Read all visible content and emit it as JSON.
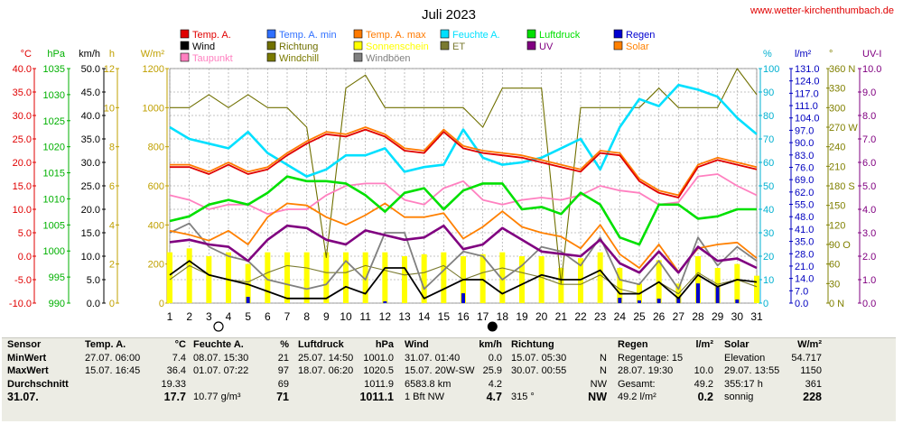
{
  "title": "Juli 2023",
  "site_url": "www.wetter-kirchenthumbach.de",
  "colors": {
    "temp": "#e00000",
    "temp_min": "#3070ff",
    "temp_max": "#ff7a00",
    "feuchte": "#00e0ff",
    "luftdruck": "#00e000",
    "regen": "#0000d0",
    "wind": "#000000",
    "richtung": "#707000",
    "sonnenschein": "#ffff00",
    "et": "#7a7a30",
    "uv": "#800080",
    "solar": "#ff8000",
    "taupunkt": "#ff80c0",
    "windchill": "#7a7a00",
    "windboeen": "#808080",
    "grid": "#b0b0b0"
  },
  "legend": [
    {
      "label": "Temp. A.",
      "color": "#e00000"
    },
    {
      "label": "Temp. A. min",
      "color": "#3070ff"
    },
    {
      "label": "Temp. A. max",
      "color": "#ff7a00"
    },
    {
      "label": "Feuchte A.",
      "color": "#00e0ff"
    },
    {
      "label": "Luftdruck",
      "color": "#00e000"
    },
    {
      "label": "Regen",
      "color": "#0000d0"
    },
    {
      "label": "Wind",
      "color": "#000000"
    },
    {
      "label": "Richtung",
      "color": "#707000"
    },
    {
      "label": "Sonnenschein",
      "color": "#ffff00"
    },
    {
      "label": "ET",
      "color": "#7a7a30"
    },
    {
      "label": "UV",
      "color": "#800080"
    },
    {
      "label": "Solar",
      "color": "#ff8000"
    },
    {
      "label": "Taupunkt",
      "color": "#ff80c0"
    },
    {
      "label": "Windchill",
      "color": "#7a7a00"
    },
    {
      "label": "Windböen",
      "color": "#808080"
    }
  ],
  "axes": {
    "temp": {
      "unit": "°C",
      "color": "#e00000",
      "ticks": [
        "40.0",
        "35.0",
        "30.0",
        "25.0",
        "20.0",
        "15.0",
        "10.0",
        "5.0",
        "0.0",
        "-5.0",
        "-10.0"
      ]
    },
    "pressure": {
      "unit": "hPa",
      "color": "#00b000",
      "ticks": [
        "1035",
        "1030",
        "1025",
        "1020",
        "1015",
        "1010",
        "1005",
        "1000",
        "995",
        "990"
      ]
    },
    "wind": {
      "unit": "km/h",
      "color": "#000000",
      "ticks": [
        "50.0",
        "45.0",
        "40.0",
        "35.0",
        "30.0",
        "25.0",
        "20.0",
        "15.0",
        "10.0",
        "5.0",
        "0.0"
      ]
    },
    "sun": {
      "unit": "h",
      "color": "#c0a000",
      "ticks": [
        "12",
        "10",
        "8",
        "6",
        "4",
        "2",
        "0"
      ]
    },
    "solar": {
      "unit": "W/m²",
      "color": "#c0a000",
      "ticks": [
        "1200",
        "1000",
        "800",
        "600",
        "400",
        "200",
        "0"
      ]
    },
    "humidity": {
      "unit": "%",
      "color": "#00b0d0",
      "ticks": [
        "100",
        "90",
        "80",
        "70",
        "60",
        "50",
        "40",
        "30",
        "20",
        "10",
        "0"
      ]
    },
    "rain": {
      "unit": "l/m²",
      "color": "#0000c0",
      "ticks": [
        "131.0",
        "124.0",
        "117.0",
        "111.0",
        "104.0",
        "97.0",
        "90.0",
        "83.0",
        "76.0",
        "69.0",
        "62.0",
        "55.0",
        "48.0",
        "41.0",
        "35.0",
        "28.0",
        "21.0",
        "14.0",
        "7.0",
        "0.0"
      ]
    },
    "direction": {
      "unit": "°",
      "color": "#808000",
      "ticks": [
        "360 N",
        "330",
        "300",
        "270 W",
        "240",
        "210",
        "180 S",
        "150",
        "120",
        "90 O",
        "60",
        "30",
        "0 N"
      ]
    },
    "uv": {
      "unit": "UV-I",
      "color": "#800080",
      "ticks": [
        "10.0",
        "9.0",
        "8.0",
        "7.0",
        "6.0",
        "5.0",
        "4.0",
        "3.0",
        "2.0",
        "1.0",
        "0.0"
      ]
    }
  },
  "moon_phases": [
    {
      "day": 4,
      "symbol": "○"
    },
    {
      "day": 18,
      "symbol": "●"
    }
  ],
  "chart_data": {
    "type": "line",
    "title": "Juli 2023",
    "x": [
      1,
      2,
      3,
      4,
      5,
      6,
      7,
      8,
      9,
      10,
      11,
      12,
      13,
      14,
      15,
      16,
      17,
      18,
      19,
      20,
      21,
      22,
      23,
      24,
      25,
      26,
      27,
      28,
      29,
      30,
      31
    ],
    "series": [
      {
        "name": "Temp. A.",
        "axis": "temp",
        "values": [
          19.0,
          19.0,
          17.5,
          19.5,
          17.5,
          18.5,
          21.5,
          24.0,
          26.0,
          25.5,
          27.0,
          25.5,
          22.5,
          22.0,
          26.5,
          23.0,
          22.0,
          21.5,
          21.0,
          20.0,
          19.0,
          18.0,
          22.0,
          21.5,
          16.0,
          13.5,
          12.5,
          19.0,
          20.5,
          19.5,
          18.5
        ]
      },
      {
        "name": "Temp. A. max",
        "axis": "temp",
        "values": [
          19.5,
          19.5,
          18.0,
          20.0,
          18.0,
          19.0,
          22.0,
          24.5,
          26.5,
          26.0,
          27.5,
          26.0,
          23.0,
          22.5,
          27.0,
          23.5,
          22.5,
          22.0,
          21.5,
          20.5,
          19.5,
          18.5,
          22.5,
          22.0,
          16.5,
          14.0,
          13.0,
          19.5,
          21.0,
          20.0,
          19.0
        ]
      },
      {
        "name": "Feuchte A.",
        "axis": "humidity",
        "values": [
          75,
          70,
          68,
          66,
          73,
          64,
          59,
          54,
          57,
          63,
          63,
          66,
          56,
          58,
          59,
          74,
          62,
          59,
          60,
          62,
          66,
          70,
          57,
          75,
          87,
          84,
          93,
          91,
          88,
          79,
          72
        ]
      },
      {
        "name": "Luftdruck",
        "axis": "pressure",
        "values": [
          1007.5,
          1008.5,
          1011.0,
          1012.0,
          1011.0,
          1013.5,
          1017.0,
          1016.0,
          1016.0,
          1015.5,
          1013.0,
          1009.5,
          1013.5,
          1014.5,
          1010.0,
          1014.0,
          1015.5,
          1015.5,
          1010.0,
          1010.5,
          1009.0,
          1013.5,
          1011.0,
          1004.0,
          1002.5,
          1011.0,
          1011.0,
          1008.0,
          1008.5,
          1010.0,
          1010.0
        ]
      },
      {
        "name": "Wind",
        "axis": "wind",
        "values": [
          6.0,
          9.0,
          6.0,
          5.0,
          4.0,
          2.5,
          1.0,
          1.0,
          1.0,
          3.5,
          2.0,
          7.5,
          7.5,
          1.0,
          3.0,
          5.0,
          5.0,
          2.0,
          4.0,
          6.0,
          5.0,
          5.0,
          7.0,
          2.0,
          2.0,
          4.5,
          1.0,
          6.0,
          3.5,
          5.0,
          4.5
        ]
      },
      {
        "name": "Windböen",
        "axis": "wind",
        "values": [
          15.0,
          17.0,
          12.0,
          10.0,
          9.0,
          5.0,
          4.0,
          3.0,
          4.0,
          9.0,
          5.0,
          15.0,
          15.0,
          3.0,
          7.0,
          11.0,
          10.0,
          5.0,
          8.0,
          12.0,
          11.0,
          8.0,
          14.0,
          5.0,
          4.0,
          9.0,
          3.0,
          14.0,
          8.0,
          12.0,
          9.0
        ]
      },
      {
        "name": "Richtung",
        "axis": "direction",
        "values": [
          300,
          300,
          320,
          300,
          320,
          300,
          300,
          270,
          70,
          330,
          350,
          300,
          300,
          300,
          300,
          300,
          270,
          330,
          330,
          330,
          30,
          300,
          300,
          300,
          300,
          330,
          300,
          300,
          300,
          360,
          320
        ]
      },
      {
        "name": "Solar",
        "axis": "solar",
        "values": [
          370,
          350,
          320,
          370,
          300,
          440,
          510,
          500,
          440,
          400,
          450,
          510,
          440,
          440,
          460,
          330,
          390,
          470,
          390,
          360,
          340,
          280,
          400,
          250,
          180,
          300,
          160,
          280,
          300,
          310,
          230
        ]
      },
      {
        "name": "UV",
        "axis": "uv",
        "values": [
          2.6,
          2.7,
          2.5,
          2.4,
          1.8,
          2.7,
          3.3,
          3.2,
          2.7,
          2.5,
          3.1,
          2.9,
          2.7,
          2.8,
          3.3,
          2.3,
          2.5,
          3.2,
          2.7,
          2.2,
          2.1,
          2.0,
          2.7,
          1.7,
          1.3,
          2.2,
          1.3,
          2.4,
          1.8,
          1.9,
          1.5
        ]
      },
      {
        "name": "Taupunkt",
        "axis": "temp",
        "values": [
          13.0,
          12.0,
          10.0,
          11.0,
          11.0,
          9.0,
          10.0,
          10.0,
          13.0,
          15.0,
          15.5,
          15.5,
          12.0,
          11.0,
          14.5,
          16.0,
          12.0,
          11.0,
          12.0,
          12.5,
          12.0,
          13.0,
          15.0,
          14.0,
          13.5,
          11.0,
          11.5,
          17.0,
          17.5,
          15.0,
          13.0
        ]
      },
      {
        "name": "ET",
        "axis": "uv",
        "values": [
          1.0,
          1.6,
          1.2,
          1.0,
          0.9,
          1.3,
          1.6,
          1.5,
          1.3,
          1.3,
          1.6,
          1.4,
          1.2,
          1.3,
          1.6,
          1.0,
          1.3,
          1.5,
          1.3,
          1.1,
          0.8,
          0.8,
          1.2,
          0.6,
          0.4,
          0.9,
          0.4,
          1.3,
          0.8,
          1.0,
          0.7
        ]
      },
      {
        "name": "Windchill",
        "axis": "temp",
        "values": [
          19.0,
          19.0,
          17.5,
          19.5,
          17.5,
          18.5,
          21.5,
          24.0,
          26.0,
          25.5,
          27.0,
          25.5,
          22.5,
          22.0,
          26.5,
          23.0,
          22.0,
          21.5,
          21.0,
          20.0,
          19.0,
          18.0,
          22.0,
          21.5,
          16.0,
          13.5,
          12.5,
          19.0,
          20.5,
          19.5,
          18.5
        ]
      },
      {
        "name": "Sonnenschein",
        "axis": "sun",
        "type": "bar",
        "values": [
          2.6,
          2.8,
          2.4,
          2.6,
          2.0,
          2.6,
          2.6,
          2.6,
          2.6,
          2.6,
          2.6,
          2.6,
          2.4,
          2.5,
          2.6,
          2.4,
          2.5,
          2.6,
          2.4,
          2.4,
          1.8,
          2.3,
          2.6,
          1.8,
          1.0,
          2.2,
          1.0,
          2.4,
          1.8,
          2.0,
          1.4
        ]
      },
      {
        "name": "Regen",
        "axis": "rain",
        "type": "bar",
        "values": [
          0,
          0,
          0,
          0,
          3.5,
          0,
          0,
          0,
          0,
          0,
          0,
          1.0,
          0,
          0,
          0,
          5.5,
          0,
          0,
          0,
          0,
          0,
          0,
          0,
          3.0,
          1.5,
          2.5,
          3.5,
          11.0,
          9.0,
          2.0,
          0
        ]
      }
    ],
    "xlabel": "",
    "ylabel": "°C",
    "ylim": [
      -10,
      40
    ]
  },
  "stats": {
    "sensor": {
      "header": "Sensor",
      "rows": [
        "MinWert",
        "MaxWert",
        "Durchschnitt"
      ],
      "total": "31.07."
    },
    "temp": {
      "h1": "Temp. A.",
      "h2": "°C",
      "r1": {
        "date": "27.07.",
        "time": "06:00",
        "val": "7.4"
      },
      "r2": {
        "date": "15.07.",
        "time": "16:45",
        "val": "36.4"
      },
      "r3": {
        "val": "19.33"
      },
      "total": "17.7"
    },
    "feuchte": {
      "h1": "Feuchte A.",
      "h2": "%",
      "r1": {
        "date": "08.07.",
        "time": "15:30",
        "val": "21"
      },
      "r2": {
        "date": "01.07.",
        "time": "07:22",
        "val": "97"
      },
      "r3": {
        "val": "69"
      },
      "total_note": "10.77 g/m³",
      "total": "71"
    },
    "luftdruck": {
      "h1": "Luftdruck",
      "h2": "hPa",
      "r1": {
        "date": "25.07.",
        "time": "14:50",
        "val": "1001.0"
      },
      "r2": {
        "date": "18.07.",
        "time": "06:20",
        "val": "1020.5"
      },
      "r3": {
        "val": "1011.9"
      },
      "total": "1011.1"
    },
    "wind": {
      "h1": "Wind",
      "h2": "km/h",
      "r1": {
        "date": "31.07.",
        "time": "01:40",
        "val": "0.0"
      },
      "r2": {
        "date": "15.07.",
        "time": "20W-SW",
        "val": "25.9"
      },
      "r3": {
        "date": "6583.8 km",
        "val": "4.2"
      },
      "total_note": "1 Bft NW",
      "total": "4.7"
    },
    "richtung": {
      "h1": "Richtung",
      "r1": {
        "date": "15.07.",
        "time": "05:30",
        "val": "N"
      },
      "r2": {
        "date": "30.07.",
        "time": "00:55",
        "val": "N"
      },
      "r3": {
        "val": "NW"
      },
      "total_note": "315 °",
      "total": "NW"
    },
    "regen": {
      "h1": "Regen",
      "h2": "l/m²",
      "r1": {
        "label": "Regentage: 15",
        "val": ""
      },
      "r2": {
        "date": "28.07.",
        "time": "19:30",
        "val": "10.0"
      },
      "r3": {
        "label": "Gesamt:",
        "val": "49.2"
      },
      "total_note": "49.2 l/m²",
      "total": "0.2"
    },
    "solar": {
      "h1": "Solar",
      "h2": "W/m²",
      "r1": {
        "label": "Elevation",
        "val": "54.717"
      },
      "r2": {
        "date": "29.07.",
        "time": "13:55",
        "val": "1150"
      },
      "r3": {
        "label": "355:17 h",
        "val": "361"
      },
      "total_note": "sonnig",
      "total": "228"
    }
  }
}
